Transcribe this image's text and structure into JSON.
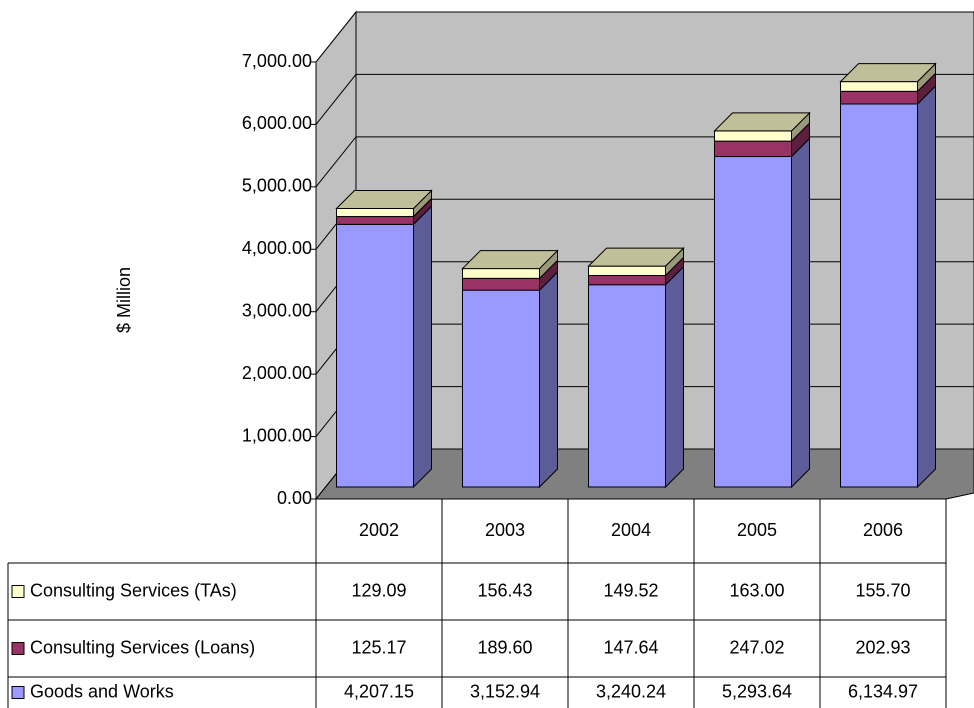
{
  "chart_data": {
    "type": "bar3d_stacked",
    "y_label": "$ Million",
    "categories": [
      "2002",
      "2003",
      "2004",
      "2005",
      "2006"
    ],
    "series": [
      {
        "name": "Goods and Works",
        "color": "#9999ff",
        "values": [
          4207.15,
          3152.94,
          3240.24,
          5293.64,
          6134.97
        ],
        "value_labels": [
          "4,207.15",
          "3,152.94",
          "3,240.24",
          "5,293.64",
          "6,134.97"
        ]
      },
      {
        "name": "Consulting Services (Loans)",
        "color": "#993366",
        "values": [
          125.17,
          189.6,
          147.64,
          247.02,
          202.93
        ],
        "value_labels": [
          "125.17",
          "189.60",
          "147.64",
          "247.02",
          "202.93"
        ]
      },
      {
        "name": "Consulting Services (TAs)",
        "color": "#ffffcc",
        "values": [
          129.09,
          156.43,
          149.52,
          163.0,
          155.7
        ],
        "value_labels": [
          "129.09",
          "156.43",
          "149.52",
          "163.00",
          "155.70"
        ]
      }
    ],
    "ylim": [
      0,
      7000
    ],
    "yticks": [
      {
        "value": 0,
        "label": "0.00"
      },
      {
        "value": 1000,
        "label": "1,000.00"
      },
      {
        "value": 2000,
        "label": "2,000.00"
      },
      {
        "value": 3000,
        "label": "3,000.00"
      },
      {
        "value": 4000,
        "label": "4,000.00"
      },
      {
        "value": 5000,
        "label": "5,000.00"
      },
      {
        "value": 6000,
        "label": "6,000.00"
      },
      {
        "value": 7000,
        "label": "7,000.00"
      }
    ],
    "grid": true
  }
}
